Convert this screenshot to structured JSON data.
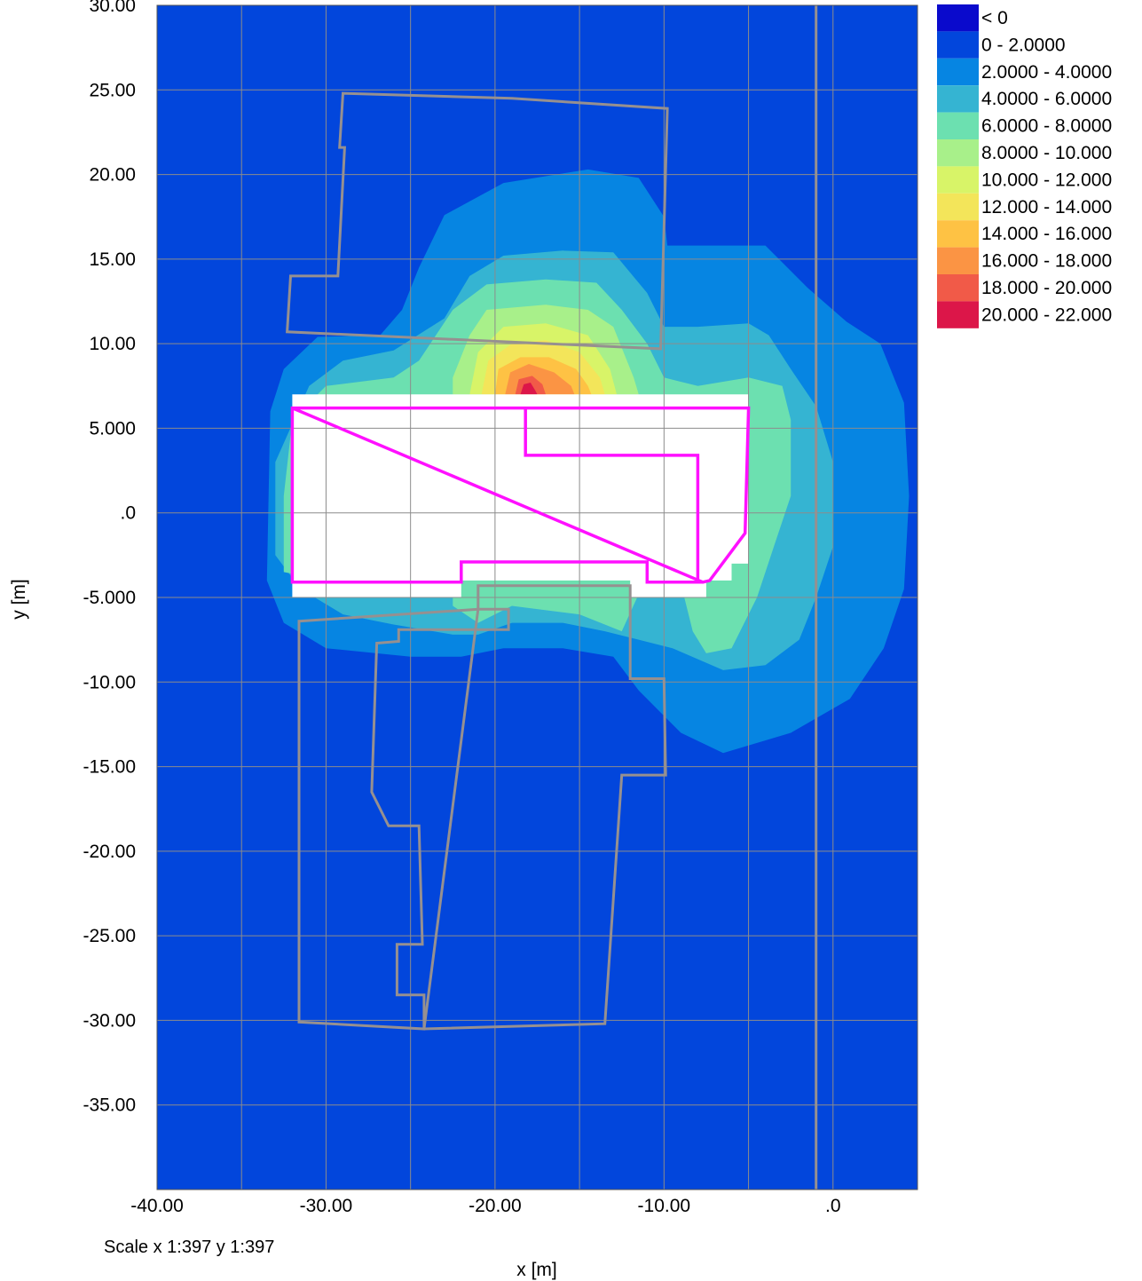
{
  "chart_data": {
    "type": "heatmap",
    "title": "",
    "xlabel": "x [m]",
    "ylabel": "y [m]",
    "xlim": [
      -40,
      5
    ],
    "ylim": [
      -40,
      30
    ],
    "x_ticks": [
      {
        "value": -40,
        "label": "-40.00"
      },
      {
        "value": -30,
        "label": "-30.00"
      },
      {
        "value": -20,
        "label": "-20.00"
      },
      {
        "value": -10,
        "label": "-10.00"
      },
      {
        "value": 0,
        "label": ".0"
      }
    ],
    "y_ticks": [
      {
        "value": 30,
        "label": "30.00"
      },
      {
        "value": 25,
        "label": "25.00"
      },
      {
        "value": 20,
        "label": "20.00"
      },
      {
        "value": 15,
        "label": "15.00"
      },
      {
        "value": 10,
        "label": "10.00"
      },
      {
        "value": 5,
        "label": "5.000"
      },
      {
        "value": 0,
        "label": ".0"
      },
      {
        "value": -5,
        "label": "-5.000"
      },
      {
        "value": -10,
        "label": "-10.00"
      },
      {
        "value": -15,
        "label": "-15.00"
      },
      {
        "value": -20,
        "label": "-20.00"
      },
      {
        "value": -25,
        "label": "-25.00"
      },
      {
        "value": -30,
        "label": "-30.00"
      },
      {
        "value": -35,
        "label": "-35.00"
      }
    ],
    "grid": true,
    "legend_position": "top-right",
    "legend": [
      {
        "label": "< 0",
        "color": "#0a0acc"
      },
      {
        "label": "0 - 2.0000",
        "color": "#0246dc"
      },
      {
        "label": "2.0000 - 4.0000",
        "color": "#0685e2"
      },
      {
        "label": "4.0000 - 6.0000",
        "color": "#35b4d2"
      },
      {
        "label": "6.0000 - 8.0000",
        "color": "#6ce0b0"
      },
      {
        "label": "8.0000 - 10.000",
        "color": "#a8f08a"
      },
      {
        "label": "10.000 - 12.000",
        "color": "#d8f468"
      },
      {
        "label": "12.000 - 14.000",
        "color": "#f3e55a"
      },
      {
        "label": "14.000 - 16.000",
        "color": "#fec244"
      },
      {
        "label": "16.000 - 18.000",
        "color": "#fb9444"
      },
      {
        "label": "18.000 - 20.000",
        "color": "#f15a48"
      },
      {
        "label": "20.000 - 22.000",
        "color": "#dc1649"
      }
    ],
    "contours": [
      {
        "band": "2.0000 - 4.0000",
        "points": [
          [
            -33.3,
            6
          ],
          [
            -32.5,
            8.5
          ],
          [
            -30.5,
            10.4
          ],
          [
            -26.8,
            10.5
          ],
          [
            -25.5,
            12
          ],
          [
            -24.5,
            14.5
          ],
          [
            -23,
            17.6
          ],
          [
            -19.5,
            19.5
          ],
          [
            -14.5,
            20.3
          ],
          [
            -11.5,
            19.8
          ],
          [
            -10,
            17.5
          ],
          [
            -9.8,
            15.8
          ],
          [
            -4,
            15.8
          ],
          [
            -1.5,
            13.3
          ],
          [
            0.8,
            11.3
          ],
          [
            2.8,
            10
          ],
          [
            4.2,
            6.5
          ],
          [
            4.5,
            1
          ],
          [
            4.2,
            -4.5
          ],
          [
            3,
            -8
          ],
          [
            1,
            -11
          ],
          [
            -2.5,
            -13
          ],
          [
            -6.5,
            -14.2
          ],
          [
            -9,
            -13
          ],
          [
            -11.5,
            -10.5
          ],
          [
            -13,
            -8.5
          ],
          [
            -16,
            -8
          ],
          [
            -19.5,
            -8
          ],
          [
            -22,
            -8.5
          ],
          [
            -25,
            -8.5
          ],
          [
            -30,
            -8
          ],
          [
            -32.5,
            -6.5
          ],
          [
            -33.5,
            -4
          ]
        ]
      },
      {
        "band": "4.0000 - 6.0000",
        "points": [
          [
            -31,
            7.5
          ],
          [
            -29,
            9
          ],
          [
            -26,
            9.6
          ],
          [
            -23,
            11.5
          ],
          [
            -21.5,
            14
          ],
          [
            -19.5,
            15.2
          ],
          [
            -16,
            15.5
          ],
          [
            -13,
            15.4
          ],
          [
            -11,
            13
          ],
          [
            -10,
            11
          ],
          [
            -8,
            11
          ],
          [
            -5,
            11.2
          ],
          [
            -3.8,
            10.5
          ],
          [
            -2.5,
            8.5
          ],
          [
            -1,
            6.3
          ],
          [
            0,
            3
          ],
          [
            0,
            -2
          ],
          [
            -1,
            -5
          ],
          [
            -2,
            -7.5
          ],
          [
            -4,
            -9
          ],
          [
            -6.5,
            -9.3
          ],
          [
            -9.5,
            -8
          ],
          [
            -11.5,
            -7.5
          ],
          [
            -13.5,
            -7
          ],
          [
            -16,
            -6.5
          ],
          [
            -19,
            -6.5
          ],
          [
            -21,
            -7.2
          ],
          [
            -22.5,
            -7.2
          ],
          [
            -26,
            -6.6
          ],
          [
            -29,
            -6
          ],
          [
            -31.5,
            -4.5
          ],
          [
            -33,
            -2.5
          ],
          [
            -33,
            3
          ]
        ]
      },
      {
        "band": "6.0000 - 8.0000",
        "points": [
          [
            -32,
            5.5
          ],
          [
            -30,
            7.5
          ],
          [
            -26,
            8
          ],
          [
            -24.5,
            9
          ],
          [
            -22.5,
            12
          ],
          [
            -20.5,
            13.5
          ],
          [
            -17,
            13.8
          ],
          [
            -14,
            13.6
          ],
          [
            -12.5,
            12
          ],
          [
            -11,
            10
          ],
          [
            -10,
            8
          ],
          [
            -8,
            7.5
          ],
          [
            -5,
            8
          ],
          [
            -3,
            7.5
          ],
          [
            -2.5,
            5.5
          ],
          [
            -2.5,
            1
          ],
          [
            -3.5,
            -2
          ],
          [
            -4.5,
            -5
          ],
          [
            -6,
            -8
          ],
          [
            -7.5,
            -8.3
          ],
          [
            -8.3,
            -7
          ],
          [
            -8.8,
            -5
          ],
          [
            -9.5,
            -4.6
          ],
          [
            -11.5,
            -4.8
          ],
          [
            -12.5,
            -7
          ],
          [
            -15,
            -6
          ],
          [
            -19,
            -5.5
          ],
          [
            -21,
            -6.5
          ],
          [
            -22.5,
            -5.5
          ],
          [
            -22.5,
            -4
          ],
          [
            -30,
            -4
          ],
          [
            -32.5,
            -3.5
          ],
          [
            -32.5,
            1
          ]
        ]
      },
      {
        "band": "8.0000 - 10.000",
        "points": [
          [
            -22.5,
            8
          ],
          [
            -21.5,
            10.5
          ],
          [
            -20.5,
            12
          ],
          [
            -17,
            12.3
          ],
          [
            -14.5,
            12
          ],
          [
            -13,
            11
          ],
          [
            -11.8,
            8
          ],
          [
            -11.5,
            7
          ],
          [
            -22.5,
            7
          ]
        ]
      },
      {
        "band": "10.000 - 12.000",
        "points": [
          [
            -21.5,
            7
          ],
          [
            -21,
            9.5
          ],
          [
            -19.5,
            11
          ],
          [
            -17,
            11.2
          ],
          [
            -14.5,
            10.5
          ],
          [
            -13.2,
            8.5
          ],
          [
            -12.8,
            7
          ]
        ]
      },
      {
        "band": "12.000 - 14.000",
        "points": [
          [
            -20.8,
            7
          ],
          [
            -20.4,
            9
          ],
          [
            -19,
            10
          ],
          [
            -17,
            10.2
          ],
          [
            -15,
            9.5
          ],
          [
            -13.8,
            8
          ],
          [
            -13.5,
            7
          ]
        ]
      },
      {
        "band": "14.000 - 16.000",
        "points": [
          [
            -20,
            7
          ],
          [
            -19.8,
            8.5
          ],
          [
            -18.5,
            9.2
          ],
          [
            -16.8,
            9.2
          ],
          [
            -15.2,
            8.5
          ],
          [
            -14.5,
            7.5
          ],
          [
            -14.3,
            7
          ]
        ]
      },
      {
        "band": "16.000 - 18.000",
        "points": [
          [
            -19.4,
            7
          ],
          [
            -19.1,
            8.3
          ],
          [
            -18,
            8.8
          ],
          [
            -16.5,
            8.3
          ],
          [
            -15.5,
            7.5
          ],
          [
            -15.3,
            7
          ]
        ]
      },
      {
        "band": "18.000 - 20.000",
        "points": [
          [
            -18.8,
            7
          ],
          [
            -18.6,
            7.9
          ],
          [
            -17.8,
            8.1
          ],
          [
            -17.2,
            7.6
          ],
          [
            -17,
            7
          ]
        ]
      },
      {
        "band": "20.000 - 22.000",
        "points": [
          [
            -18.5,
            7
          ],
          [
            -18.3,
            7.6
          ],
          [
            -17.9,
            7.7
          ],
          [
            -17.6,
            7.2
          ],
          [
            -17.5,
            7
          ]
        ]
      }
    ],
    "blank_region": [
      [
        -32,
        7
      ],
      [
        -5,
        7
      ],
      [
        -5,
        -3
      ],
      [
        -6,
        -3
      ],
      [
        -6,
        -4
      ],
      [
        -7.5,
        -4
      ],
      [
        -7.5,
        -5
      ],
      [
        -12,
        -5
      ],
      [
        -12,
        -4
      ],
      [
        -22,
        -4
      ],
      [
        -22,
        -5
      ],
      [
        -32,
        -5
      ]
    ],
    "outlines": [
      {
        "role": "building",
        "color": "#969090",
        "points": [
          [
            -29,
            24.8
          ],
          [
            -19,
            24.5
          ],
          [
            -9.8,
            23.9
          ],
          [
            -10.2,
            9.7
          ],
          [
            -32.3,
            10.7
          ],
          [
            -32.1,
            14
          ],
          [
            -29.3,
            14
          ],
          [
            -28.9,
            21.6
          ],
          [
            -29.2,
            21.6
          ]
        ]
      },
      {
        "role": "building",
        "color": "#969090",
        "points": [
          [
            -21,
            -4.3
          ],
          [
            -12,
            -4.3
          ],
          [
            -12,
            -9.8
          ],
          [
            -10,
            -9.8
          ],
          [
            -9.9,
            -15.5
          ],
          [
            -12.5,
            -15.5
          ],
          [
            -13.5,
            -30.2
          ],
          [
            -24.2,
            -30.5
          ],
          [
            -24.2,
            -28.5
          ],
          [
            -25.8,
            -28.5
          ],
          [
            -25.8,
            -25.5
          ],
          [
            -24.3,
            -25.5
          ],
          [
            -24.5,
            -18.5
          ],
          [
            -26.3,
            -18.5
          ],
          [
            -27.3,
            -16.5
          ],
          [
            -27,
            -7.7
          ],
          [
            -25.7,
            -7.6
          ],
          [
            -25.7,
            -6.9
          ],
          [
            -19.2,
            -6.9
          ],
          [
            -19.2,
            -5.7
          ],
          [
            -21,
            -5.7
          ]
        ]
      },
      {
        "role": "building",
        "color": "#969090",
        "points": [
          [
            -31.6,
            -6.4
          ],
          [
            -21,
            -5.7
          ],
          [
            -24.2,
            -30.5
          ],
          [
            -31.6,
            -30.1
          ]
        ]
      },
      {
        "role": "road-line",
        "color": "#969090",
        "points": [
          [
            -1,
            30
          ],
          [
            -1,
            -40
          ]
        ]
      },
      {
        "role": "calculation-area",
        "color": "#ff10ff",
        "points": [
          [
            -32,
            6.2
          ],
          [
            -5,
            6.2
          ],
          [
            -5.2,
            -1.2
          ],
          [
            -7.3,
            -4
          ],
          [
            -7.7,
            -4.1
          ],
          [
            -8,
            -4
          ],
          [
            -8,
            3.4
          ],
          [
            -18.2,
            3.4
          ],
          [
            -18.2,
            6.2
          ],
          [
            -32,
            6.2
          ],
          [
            -32,
            -4.1
          ],
          [
            -22,
            -4.1
          ],
          [
            -22,
            -2.9
          ],
          [
            -11,
            -2.9
          ],
          [
            -11,
            -4.1
          ],
          [
            -7.7,
            -4.1
          ]
        ]
      }
    ]
  },
  "scale_note": "Scale x 1:397  y 1:397"
}
